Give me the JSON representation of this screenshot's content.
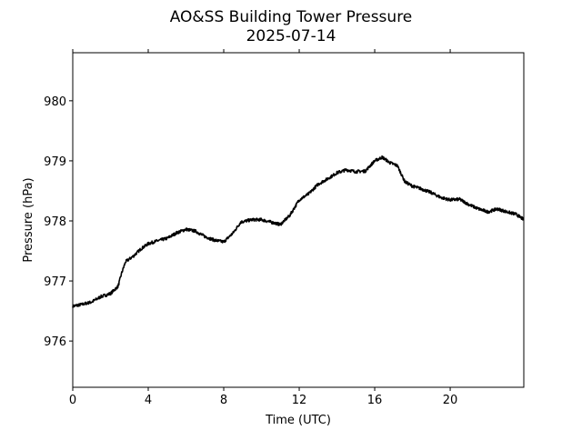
{
  "chart_data": {
    "type": "line",
    "title": "AO&SS Building Tower Pressure",
    "subtitle": "2025-07-14",
    "xlabel": "Time (UTC)",
    "ylabel": "Pressure (hPa)",
    "xlim": [
      0,
      23.9
    ],
    "ylim": [
      975.23,
      980.8
    ],
    "xticks": [
      0,
      4,
      8,
      12,
      16,
      20
    ],
    "yticks": [
      976,
      977,
      978,
      979,
      980
    ],
    "grid": false,
    "line_color": "#000000",
    "series": [
      {
        "name": "Pressure",
        "x": [
          0,
          0.5,
          1,
          1.5,
          2,
          2.4,
          2.6,
          2.8,
          3.2,
          3.6,
          4,
          4.5,
          5,
          5.5,
          6,
          6.5,
          7,
          7.5,
          8,
          8.5,
          8.9,
          9.5,
          10,
          10.5,
          11,
          11.5,
          12,
          12.5,
          13,
          13.5,
          14,
          14.5,
          15,
          15.5,
          16,
          16.4,
          16.8,
          17.2,
          17.6,
          18,
          18.5,
          19,
          19.5,
          20,
          20.5,
          21,
          21.5,
          22,
          22.5,
          23,
          23.5,
          23.9
        ],
        "y": [
          976.58,
          976.61,
          976.65,
          976.74,
          976.79,
          976.91,
          977.14,
          977.32,
          977.41,
          977.53,
          977.62,
          977.67,
          977.71,
          977.8,
          977.86,
          977.83,
          977.74,
          977.68,
          977.65,
          977.8,
          977.98,
          978.02,
          978.02,
          977.98,
          977.94,
          978.09,
          978.35,
          978.45,
          978.61,
          978.7,
          978.8,
          978.85,
          978.82,
          978.83,
          979.0,
          979.06,
          978.97,
          978.92,
          978.65,
          978.58,
          978.53,
          978.47,
          978.39,
          978.35,
          978.36,
          978.27,
          978.2,
          978.15,
          978.2,
          978.15,
          978.11,
          978.02
        ]
      }
    ]
  }
}
